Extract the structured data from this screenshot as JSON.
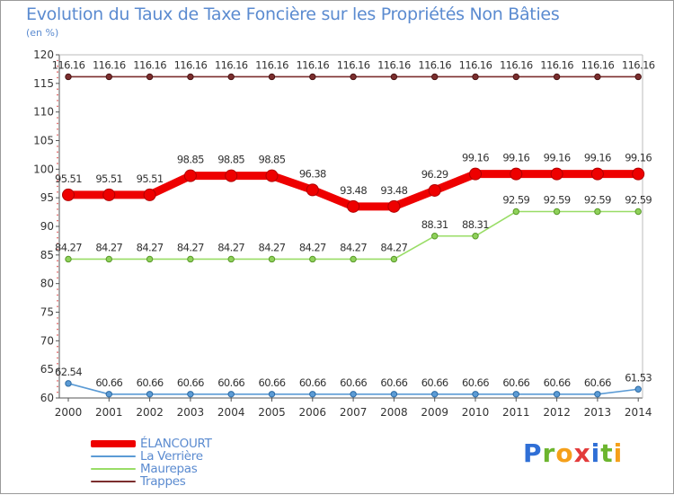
{
  "chart_data": {
    "type": "line",
    "title": "Evolution du Taux de Taxe Foncière sur les Propriétés Non Bâties",
    "ylabel": "(en %)",
    "xlabel": "",
    "ylim": [
      60,
      120
    ],
    "yticks": [
      "60",
      "65",
      "70",
      "75",
      "80",
      "85",
      "90",
      "95",
      "100",
      "105",
      "110",
      "115",
      "120"
    ],
    "categories": [
      "2000",
      "2001",
      "2002",
      "2003",
      "2004",
      "2005",
      "2006",
      "2007",
      "2008",
      "2009",
      "2010",
      "2011",
      "2012",
      "2013",
      "2014"
    ],
    "series": [
      {
        "name": "ÉLANCOURT",
        "color": "#ee0000",
        "values": [
          95.51,
          95.51,
          95.51,
          98.85,
          98.85,
          98.85,
          96.38,
          93.48,
          93.48,
          96.29,
          99.16,
          99.16,
          99.16,
          99.16,
          99.16
        ],
        "labels": [
          "95.51",
          "95.51",
          "95.51",
          "98.85",
          "98.85",
          "98.85",
          "96.38",
          "93.48",
          "93.48",
          "96.29",
          "99.16",
          "99.16",
          "99.16",
          "99.16",
          "99.16"
        ]
      },
      {
        "name": "La Verrière",
        "color": "#5b9bd5",
        "values": [
          62.54,
          60.66,
          60.66,
          60.66,
          60.66,
          60.66,
          60.66,
          60.66,
          60.66,
          60.66,
          60.66,
          60.66,
          60.66,
          60.66,
          61.53
        ],
        "labels": [
          "62.54",
          "60.66",
          "60.66",
          "60.66",
          "60.66",
          "60.66",
          "60.66",
          "60.66",
          "60.66",
          "60.66",
          "60.66",
          "60.66",
          "60.66",
          "60.66",
          "61.53"
        ]
      },
      {
        "name": "Maurepas",
        "color": "#99dd66",
        "values": [
          84.27,
          84.27,
          84.27,
          84.27,
          84.27,
          84.27,
          84.27,
          84.27,
          84.27,
          88.31,
          88.31,
          92.59,
          92.59,
          92.59,
          92.59
        ],
        "labels": [
          "84.27",
          "84.27",
          "84.27",
          "84.27",
          "84.27",
          "84.27",
          "84.27",
          "84.27",
          "84.27",
          "88.31",
          "88.31",
          "92.59",
          "92.59",
          "92.59",
          "92.59"
        ]
      },
      {
        "name": "Trappes",
        "color": "#7b2e2e",
        "values": [
          116.16,
          116.16,
          116.16,
          116.16,
          116.16,
          116.16,
          116.16,
          116.16,
          116.16,
          116.16,
          116.16,
          116.16,
          116.16,
          116.16,
          116.16
        ],
        "labels": [
          "116.16",
          "116.16",
          "116.16",
          "116.16",
          "116.16",
          "116.16",
          "116.16",
          "116.16",
          "116.16",
          "116.16",
          "116.16",
          "116.16",
          "116.16",
          "116.16",
          "116.16"
        ]
      }
    ],
    "legend_position": "bottom-left",
    "grid": false
  },
  "legend": {
    "items": [
      {
        "label": "ÉLANCOURT",
        "color": "#ee0000"
      },
      {
        "label": "La Verrière",
        "color": "#5b9bd5"
      },
      {
        "label": "Maurepas",
        "color": "#99dd66"
      },
      {
        "label": "Trappes",
        "color": "#7b2e2e"
      }
    ]
  },
  "logo": {
    "text": "Proxiti",
    "letter_colors": [
      "#2f6fd6",
      "#6cb52e",
      "#f5a01a",
      "#e33b3b",
      "#2f6fd6",
      "#6cb52e",
      "#f5a01a"
    ]
  }
}
